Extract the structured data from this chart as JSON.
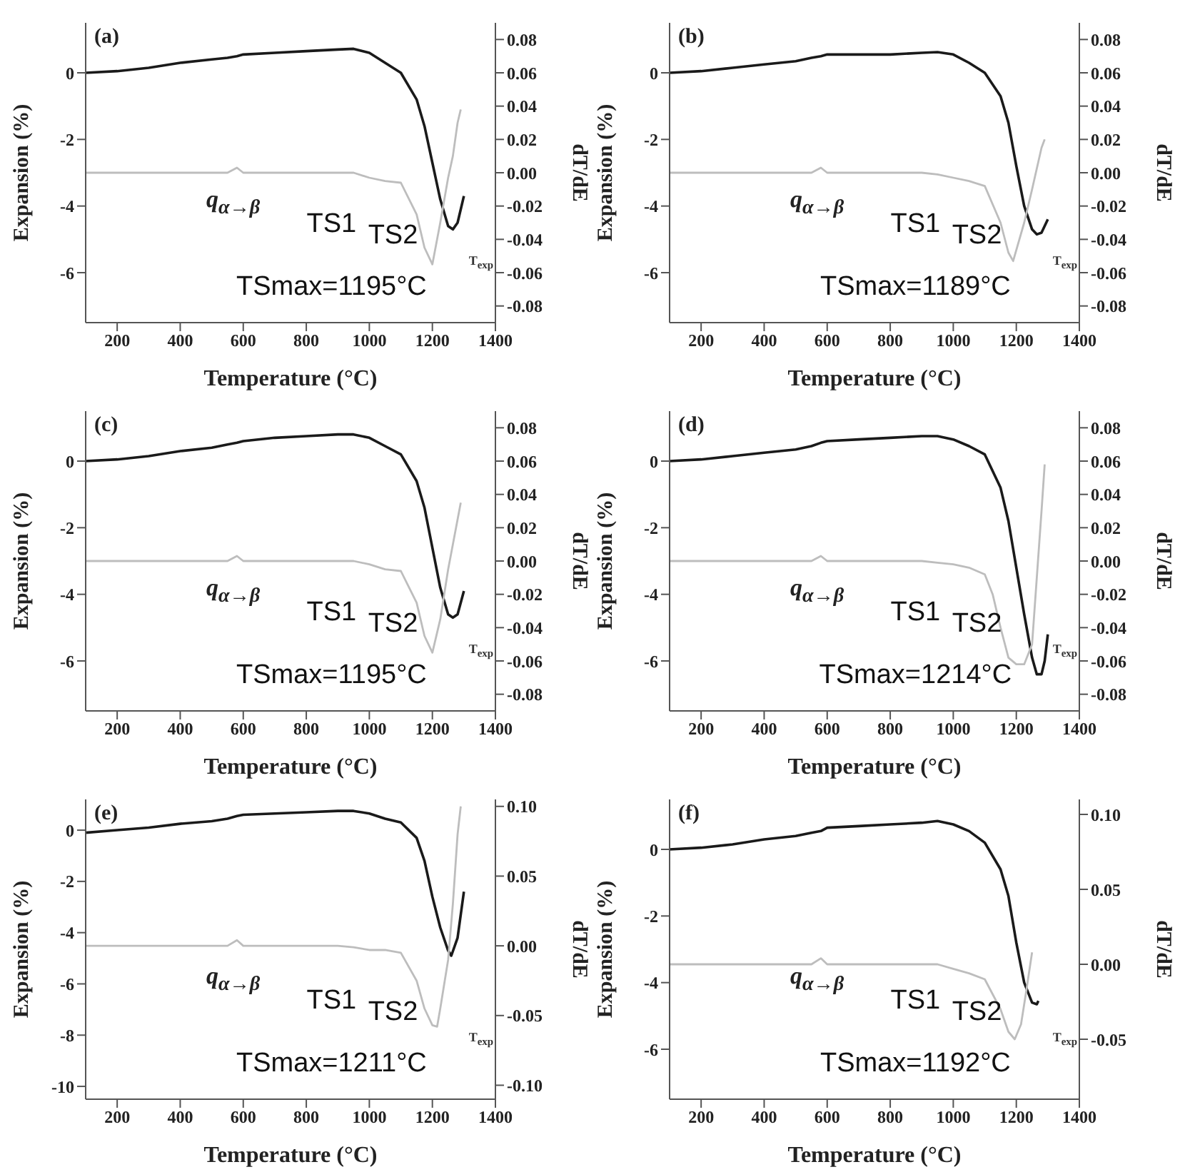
{
  "chart_data": [
    {
      "type": "line",
      "title": "(a)",
      "xlabel": "Temperature (°C)",
      "ylabel": "Expansion (%)",
      "y2label": "dT/dE",
      "xlim": [
        100,
        1400
      ],
      "xticks": [
        200,
        400,
        600,
        800,
        1000,
        1200,
        1400
      ],
      "ylim": [
        -7.5,
        1.5
      ],
      "yticks": [
        -6,
        -4,
        -2,
        0
      ],
      "y2lim": [
        -0.09,
        0.09
      ],
      "y2ticks": [
        {
          "value": -0.08,
          "label": "-0.08"
        },
        {
          "value": -0.06,
          "label": "-0.06"
        },
        {
          "value": -0.04,
          "label": "-0.04"
        },
        {
          "value": -0.02,
          "label": "-0.02"
        },
        {
          "value": 0,
          "label": "0.00"
        },
        {
          "value": 0.02,
          "label": "0.02"
        },
        {
          "value": 0.04,
          "label": "0.04"
        },
        {
          "value": 0.06,
          "label": "0.06"
        },
        {
          "value": 0.08,
          "label": "0.08"
        }
      ],
      "marker": "none",
      "line_style": "solid",
      "series": [
        {
          "color": "#1a1a1a",
          "x": [
            100,
            200,
            300,
            400,
            500,
            550,
            580,
            600,
            700,
            800,
            900,
            950,
            1000,
            1050,
            1100,
            1150,
            1175,
            1200,
            1225,
            1250,
            1265,
            1280,
            1300
          ],
          "values": [
            0,
            0.05,
            0.15,
            0.3,
            0.4,
            0.45,
            0.5,
            0.55,
            0.6,
            0.65,
            0.7,
            0.72,
            0.6,
            0.3,
            0,
            -0.8,
            -1.6,
            -2.7,
            -3.8,
            -4.6,
            -4.7,
            -4.5,
            -3.7
          ]
        },
        {
          "color": "#bdbdbd",
          "axis": "y2",
          "x": [
            100,
            200,
            300,
            400,
            500,
            550,
            580,
            600,
            700,
            800,
            900,
            950,
            1000,
            1050,
            1100,
            1150,
            1175,
            1200,
            1225,
            1250,
            1265,
            1280,
            1290
          ],
          "values": [
            0,
            0,
            0,
            0,
            0,
            0,
            0.003,
            0,
            0,
            0,
            0,
            0,
            -0.003,
            -0.005,
            -0.006,
            -0.025,
            -0.045,
            -0.055,
            -0.03,
            -0.003,
            0.01,
            0.03,
            0.038
          ]
        }
      ],
      "annotations": [
        "q$_{α→β}$",
        "TS1",
        "TS2",
        "TSmax=1195°C",
        "T$_{exp}$"
      ]
    },
    {
      "type": "line",
      "title": "(b)",
      "xlabel": "Temperature (°C)",
      "ylabel": "Expansion (%)",
      "y2label": "dT/dE",
      "xlim": [
        100,
        1400
      ],
      "xticks": [
        200,
        400,
        600,
        800,
        1000,
        1200,
        1400
      ],
      "ylim": [
        -7.5,
        1.5
      ],
      "yticks": [
        -6,
        -4,
        -2,
        0
      ],
      "y2lim": [
        -0.09,
        0.09
      ],
      "y2ticks": [
        {
          "value": -0.08,
          "label": "-0.08"
        },
        {
          "value": -0.06,
          "label": "-0.06"
        },
        {
          "value": -0.04,
          "label": "-0.04"
        },
        {
          "value": -0.02,
          "label": "-0.02"
        },
        {
          "value": 0,
          "label": "0.00"
        },
        {
          "value": 0.02,
          "label": "0.02"
        },
        {
          "value": 0.04,
          "label": "0.04"
        },
        {
          "value": 0.06,
          "label": "0.06"
        },
        {
          "value": 0.08,
          "label": "0.08"
        }
      ],
      "marker": "none",
      "line_style": "solid",
      "series": [
        {
          "color": "#1a1a1a",
          "x": [
            100,
            200,
            300,
            400,
            500,
            550,
            580,
            600,
            700,
            800,
            900,
            950,
            1000,
            1050,
            1100,
            1150,
            1175,
            1200,
            1225,
            1250,
            1265,
            1280,
            1300
          ],
          "values": [
            0,
            0.05,
            0.15,
            0.25,
            0.35,
            0.45,
            0.5,
            0.55,
            0.55,
            0.55,
            0.6,
            0.62,
            0.55,
            0.3,
            0,
            -0.7,
            -1.5,
            -2.8,
            -4.0,
            -4.7,
            -4.85,
            -4.8,
            -4.4
          ]
        },
        {
          "color": "#bdbdbd",
          "axis": "y2",
          "x": [
            100,
            200,
            300,
            400,
            500,
            550,
            580,
            600,
            700,
            800,
            900,
            950,
            1000,
            1050,
            1100,
            1150,
            1175,
            1190,
            1225,
            1250,
            1280,
            1290
          ],
          "values": [
            0,
            0,
            0,
            0,
            0,
            0,
            0.003,
            0,
            0,
            0,
            0,
            -0.001,
            -0.003,
            -0.005,
            -0.008,
            -0.03,
            -0.048,
            -0.053,
            -0.03,
            -0.01,
            0.015,
            0.02
          ]
        }
      ],
      "annotations": [
        "q$_{α→β}$",
        "TS1",
        "TS2",
        "TSmax=1189°C",
        "T$_{exp}$"
      ]
    },
    {
      "type": "line",
      "title": "(c)",
      "xlabel": "Temperature (°C)",
      "ylabel": "Expansion (%)",
      "y2label": "dT/dE",
      "xlim": [
        100,
        1400
      ],
      "xticks": [
        200,
        400,
        600,
        800,
        1000,
        1200,
        1400
      ],
      "ylim": [
        -7.5,
        1.5
      ],
      "yticks": [
        -6,
        -4,
        -2,
        0
      ],
      "y2lim": [
        -0.09,
        0.09
      ],
      "y2ticks": [
        {
          "value": -0.08,
          "label": "-0.08"
        },
        {
          "value": -0.06,
          "label": "-0.06"
        },
        {
          "value": -0.04,
          "label": "-0.04"
        },
        {
          "value": -0.02,
          "label": "-0.02"
        },
        {
          "value": 0,
          "label": "0.00"
        },
        {
          "value": 0.02,
          "label": "0.02"
        },
        {
          "value": 0.04,
          "label": "0.04"
        },
        {
          "value": 0.06,
          "label": "0.06"
        },
        {
          "value": 0.08,
          "label": "0.08"
        }
      ],
      "marker": "none",
      "line_style": "solid",
      "series": [
        {
          "color": "#1a1a1a",
          "x": [
            100,
            200,
            300,
            400,
            500,
            550,
            580,
            600,
            700,
            800,
            900,
            950,
            1000,
            1050,
            1100,
            1150,
            1175,
            1200,
            1225,
            1250,
            1265,
            1280,
            1300
          ],
          "values": [
            0,
            0.05,
            0.15,
            0.3,
            0.4,
            0.5,
            0.55,
            0.6,
            0.7,
            0.75,
            0.8,
            0.8,
            0.7,
            0.45,
            0.2,
            -0.6,
            -1.4,
            -2.6,
            -3.8,
            -4.6,
            -4.7,
            -4.6,
            -3.9
          ]
        },
        {
          "color": "#bdbdbd",
          "axis": "y2",
          "x": [
            100,
            200,
            300,
            400,
            500,
            550,
            580,
            600,
            700,
            800,
            900,
            950,
            1000,
            1050,
            1100,
            1150,
            1175,
            1200,
            1225,
            1250,
            1265,
            1280,
            1290
          ],
          "values": [
            0,
            0,
            0,
            0,
            0,
            0,
            0.003,
            0,
            0,
            0,
            0,
            0,
            -0.002,
            -0.005,
            -0.006,
            -0.025,
            -0.045,
            -0.055,
            -0.035,
            -0.005,
            0.01,
            0.025,
            0.035
          ]
        }
      ],
      "annotations": [
        "q$_{α→β}$",
        "TS1",
        "TS2",
        "TSmax=1195°C",
        "T$_{exp}$"
      ]
    },
    {
      "type": "line",
      "title": "(d)",
      "xlabel": "Temperature (°C)",
      "ylabel": "Expansion (%)",
      "y2label": "dT/dE",
      "xlim": [
        100,
        1400
      ],
      "xticks": [
        200,
        400,
        600,
        800,
        1000,
        1200,
        1400
      ],
      "ylim": [
        -7.5,
        1.5
      ],
      "yticks": [
        -6,
        -4,
        -2,
        0
      ],
      "y2lim": [
        -0.09,
        0.09
      ],
      "y2ticks": [
        {
          "value": -0.08,
          "label": "-0.08"
        },
        {
          "value": -0.06,
          "label": "-0.06"
        },
        {
          "value": -0.04,
          "label": "-0.04"
        },
        {
          "value": -0.02,
          "label": "-0.02"
        },
        {
          "value": 0,
          "label": "0.00"
        },
        {
          "value": 0.02,
          "label": "0.02"
        },
        {
          "value": 0.04,
          "label": "0.04"
        },
        {
          "value": 0.06,
          "label": "0.06"
        },
        {
          "value": 0.08,
          "label": "0.08"
        }
      ],
      "marker": "none",
      "line_style": "solid",
      "series": [
        {
          "color": "#1a1a1a",
          "x": [
            100,
            200,
            300,
            400,
            500,
            550,
            580,
            600,
            700,
            800,
            900,
            950,
            1000,
            1050,
            1100,
            1150,
            1175,
            1200,
            1225,
            1250,
            1265,
            1280,
            1290,
            1300
          ],
          "values": [
            0,
            0.05,
            0.15,
            0.25,
            0.35,
            0.45,
            0.55,
            0.6,
            0.65,
            0.7,
            0.75,
            0.75,
            0.65,
            0.45,
            0.2,
            -0.8,
            -1.8,
            -3.2,
            -4.6,
            -5.9,
            -6.4,
            -6.4,
            -6.0,
            -5.2
          ]
        },
        {
          "color": "#bdbdbd",
          "axis": "y2",
          "x": [
            100,
            200,
            300,
            400,
            500,
            550,
            580,
            600,
            700,
            800,
            900,
            950,
            1000,
            1050,
            1100,
            1125,
            1150,
            1175,
            1200,
            1225,
            1250,
            1265,
            1280,
            1290
          ],
          "values": [
            0,
            0,
            0,
            0,
            0,
            0,
            0.003,
            0,
            0,
            0,
            0,
            -0.001,
            -0.002,
            -0.004,
            -0.008,
            -0.02,
            -0.04,
            -0.058,
            -0.062,
            -0.062,
            -0.05,
            -0.01,
            0.03,
            0.058
          ]
        }
      ],
      "annotations": [
        "q$_{α→β}$",
        "TS1",
        "TS2",
        "TSmax=1214°C",
        "T$_{exp}$"
      ]
    },
    {
      "type": "line",
      "title": "(e)",
      "xlabel": "Temperature (°C)",
      "ylabel": "Expansion (%)",
      "y2label": "dT/dE",
      "xlim": [
        100,
        1400
      ],
      "xticks": [
        200,
        400,
        600,
        800,
        1000,
        1200,
        1400
      ],
      "ylim": [
        -10.5,
        1.2
      ],
      "yticks": [
        -10,
        -8,
        -6,
        -4,
        -2,
        0
      ],
      "y2lim": [
        -0.11,
        0.105
      ],
      "y2ticks": [
        {
          "value": -0.1,
          "label": "-0.10"
        },
        {
          "value": -0.05,
          "label": "-0.05"
        },
        {
          "value": 0,
          "label": "0.00"
        },
        {
          "value": 0.05,
          "label": "0.05"
        },
        {
          "value": 0.1,
          "label": "0.10"
        }
      ],
      "marker": "none",
      "line_style": "solid",
      "series": [
        {
          "color": "#1a1a1a",
          "x": [
            100,
            200,
            300,
            400,
            500,
            550,
            580,
            600,
            700,
            800,
            900,
            950,
            1000,
            1050,
            1100,
            1150,
            1175,
            1200,
            1225,
            1250,
            1260,
            1280,
            1300
          ],
          "values": [
            -0.1,
            0,
            0.1,
            0.25,
            0.35,
            0.45,
            0.55,
            0.6,
            0.65,
            0.7,
            0.75,
            0.75,
            0.65,
            0.45,
            0.3,
            -0.3,
            -1.2,
            -2.6,
            -3.8,
            -4.7,
            -4.9,
            -4.2,
            -2.4
          ]
        },
        {
          "color": "#bdbdbd",
          "axis": "y2",
          "x": [
            100,
            200,
            300,
            400,
            500,
            550,
            580,
            600,
            700,
            800,
            900,
            950,
            1000,
            1050,
            1100,
            1150,
            1175,
            1200,
            1215,
            1225,
            1250,
            1265,
            1280,
            1290
          ],
          "values": [
            0,
            0,
            0,
            0,
            0,
            0,
            0.004,
            0,
            0,
            0,
            0,
            -0.001,
            -0.003,
            -0.003,
            -0.005,
            -0.025,
            -0.045,
            -0.057,
            -0.058,
            -0.045,
            -0.01,
            0.03,
            0.08,
            0.1
          ]
        }
      ],
      "annotations": [
        "q$_{α→β}$",
        "TS1",
        "TS2",
        "TSmax=1211°C",
        "T$_{exp}$"
      ]
    },
    {
      "type": "line",
      "title": "(f)",
      "xlabel": "Temperature (°C)",
      "ylabel": "Expansion (%)",
      "y2label": "dT/dE",
      "xlim": [
        100,
        1400
      ],
      "xticks": [
        200,
        400,
        600,
        800,
        1000,
        1200,
        1400
      ],
      "ylim": [
        -7.5,
        1.5
      ],
      "yticks": [
        -6,
        -4,
        -2,
        0
      ],
      "y2lim": [
        -0.09,
        0.11
      ],
      "y2ticks": [
        {
          "value": -0.05,
          "label": "-0.05"
        },
        {
          "value": 0,
          "label": "0.00"
        },
        {
          "value": 0.05,
          "label": "0.05"
        },
        {
          "value": 0.1,
          "label": "0.10"
        }
      ],
      "marker": "none",
      "line_style": "solid",
      "series": [
        {
          "color": "#1a1a1a",
          "x": [
            100,
            200,
            300,
            400,
            500,
            550,
            580,
            600,
            700,
            800,
            900,
            950,
            1000,
            1050,
            1100,
            1150,
            1175,
            1200,
            1225,
            1250,
            1265,
            1270
          ],
          "values": [
            0,
            0.05,
            0.15,
            0.3,
            0.4,
            0.5,
            0.55,
            0.65,
            0.7,
            0.75,
            0.8,
            0.85,
            0.75,
            0.55,
            0.2,
            -0.6,
            -1.4,
            -2.8,
            -4.0,
            -4.6,
            -4.65,
            -4.55
          ]
        },
        {
          "color": "#bdbdbd",
          "axis": "y2",
          "x": [
            100,
            200,
            300,
            400,
            500,
            550,
            580,
            600,
            700,
            800,
            900,
            950,
            1000,
            1050,
            1100,
            1150,
            1175,
            1195,
            1215,
            1230,
            1250
          ],
          "values": [
            0,
            0,
            0,
            0,
            0,
            0,
            0.004,
            0,
            0,
            0,
            0,
            0,
            -0.003,
            -0.006,
            -0.01,
            -0.03,
            -0.045,
            -0.05,
            -0.04,
            -0.02,
            0.008
          ]
        }
      ],
      "annotations": [
        "q$_{α→β}$",
        "TS1",
        "TS2",
        "TSmax=1192°C",
        "T$_{exp}$"
      ]
    }
  ]
}
